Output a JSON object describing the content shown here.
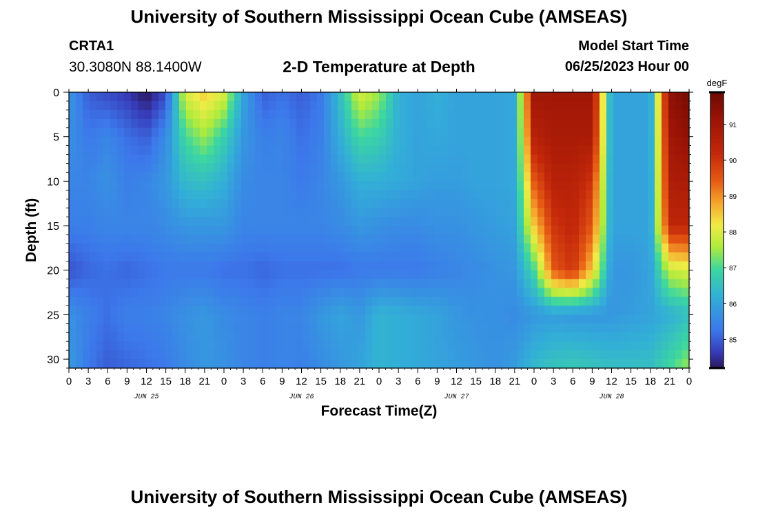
{
  "header": {
    "title_top": "University of Southern Mississippi Ocean Cube (AMSEAS)",
    "title_bottom": "University of Southern Mississippi Ocean Cube (AMSEAS)",
    "station": "CRTA1",
    "coords": "30.3080N  88.1400W",
    "subtitle": "2-D Temperature at Depth",
    "start_label": "Model Start Time",
    "start_value": "06/25/2023 Hour 00"
  },
  "chart_data": {
    "type": "heatmap",
    "title": "2-D Temperature at Depth",
    "xlabel": "Forecast Time(Z)",
    "ylabel": "Depth (ft)",
    "units": "degF",
    "xlim": [
      0,
      96
    ],
    "ylim": [
      0,
      31
    ],
    "y_inverted": true,
    "x_ticks": [
      0,
      3,
      6,
      9,
      12,
      15,
      18,
      21,
      24,
      27,
      30,
      33,
      36,
      39,
      42,
      45,
      48,
      51,
      54,
      57,
      60,
      63,
      66,
      69,
      72,
      75,
      78,
      81,
      84,
      87,
      90,
      93,
      96
    ],
    "x_tick_labels": [
      "0",
      "3",
      "6",
      "9",
      "12",
      "15",
      "18",
      "21",
      "0",
      "3",
      "6",
      "9",
      "12",
      "15",
      "18",
      "21",
      "0",
      "3",
      "6",
      "9",
      "12",
      "15",
      "18",
      "21",
      "0",
      "3",
      "6",
      "9",
      "12",
      "15",
      "18",
      "21",
      "0"
    ],
    "date_labels": [
      {
        "x": 12,
        "label": "JUN 25"
      },
      {
        "x": 36,
        "label": "JUN 26"
      },
      {
        "x": 60,
        "label": "JUN 27"
      },
      {
        "x": 84,
        "label": "JUN 28"
      }
    ],
    "y_ticks": [
      0,
      5,
      10,
      15,
      20,
      25,
      30
    ],
    "y_tick_labels": [
      "0",
      "5",
      "10",
      "15",
      "20",
      "25",
      "30"
    ],
    "colorbar": {
      "min": 84.2,
      "max": 91.9,
      "ticks": [
        85,
        86,
        87,
        88,
        89,
        90,
        91
      ],
      "tick_labels": [
        "85",
        "86",
        "87",
        "88",
        "89",
        "90",
        "91"
      ],
      "label": "degF"
    },
    "x": [
      0,
      3,
      6,
      9,
      12,
      15,
      18,
      21,
      24,
      27,
      30,
      33,
      36,
      39,
      42,
      45,
      48,
      51,
      54,
      57,
      60,
      63,
      66,
      69,
      72,
      75,
      78,
      81,
      84,
      87,
      90,
      93,
      96
    ],
    "y": [
      0,
      5,
      10,
      15,
      20,
      25,
      31
    ],
    "z": [
      [
        85.8,
        85.0,
        84.8,
        84.6,
        84.2,
        84.8,
        88.0,
        88.5,
        88.0,
        86.0,
        85.0,
        85.2,
        85.0,
        85.3,
        86.5,
        88.0,
        87.5,
        86.2,
        86.0,
        86.2,
        86.0,
        86.0,
        86.0,
        86.1,
        91.0,
        91.0,
        91.0,
        91.0,
        86.0,
        86.0,
        86.0,
        91.3,
        91.8
      ],
      [
        85.7,
        85.3,
        85.5,
        85.2,
        85.0,
        85.6,
        87.0,
        87.5,
        86.8,
        85.8,
        85.4,
        85.5,
        85.2,
        85.4,
        86.2,
        87.0,
        86.8,
        86.2,
        86.0,
        86.1,
        86.0,
        86.0,
        86.0,
        86.1,
        90.5,
        90.8,
        90.8,
        90.8,
        86.0,
        86.0,
        86.0,
        91.0,
        91.3
      ],
      [
        85.5,
        85.5,
        85.7,
        85.4,
        85.5,
        85.8,
        86.4,
        86.5,
        86.2,
        85.6,
        85.5,
        85.5,
        85.3,
        85.5,
        85.8,
        86.2,
        86.2,
        86.1,
        86.0,
        85.9,
        85.9,
        86.0,
        86.0,
        86.1,
        89.5,
        90.5,
        90.5,
        90.0,
        86.0,
        86.0,
        86.0,
        90.7,
        90.8
      ],
      [
        85.4,
        85.4,
        85.5,
        85.5,
        85.5,
        85.6,
        85.8,
        85.8,
        85.8,
        85.5,
        85.5,
        85.5,
        85.5,
        85.5,
        85.6,
        85.8,
        85.7,
        85.6,
        85.6,
        85.7,
        85.7,
        85.8,
        85.9,
        86.0,
        88.5,
        90.0,
        90.3,
        89.5,
        86.0,
        86.0,
        86.0,
        90.3,
        90.3
      ],
      [
        84.9,
        85.1,
        85.2,
        85.1,
        85.2,
        85.3,
        85.3,
        85.3,
        85.2,
        85.2,
        85.1,
        85.2,
        85.2,
        85.2,
        85.2,
        85.3,
        85.3,
        85.3,
        85.3,
        85.4,
        85.5,
        85.6,
        85.7,
        85.8,
        87.0,
        89.5,
        90.0,
        88.5,
        85.8,
        85.8,
        86.0,
        87.8,
        88.0
      ],
      [
        85.7,
        85.4,
        85.2,
        85.4,
        85.4,
        85.5,
        85.7,
        85.8,
        85.6,
        85.5,
        85.4,
        85.5,
        85.5,
        85.8,
        86.0,
        85.8,
        86.3,
        86.2,
        86.1,
        86.0,
        85.8,
        85.7,
        85.7,
        85.6,
        85.8,
        85.9,
        85.8,
        85.8,
        85.8,
        85.9,
        86.0,
        86.2,
        86.5
      ],
      [
        85.9,
        85.3,
        85.0,
        85.1,
        85.2,
        85.3,
        85.6,
        85.8,
        85.7,
        85.5,
        85.4,
        85.5,
        85.4,
        85.6,
        85.8,
        86.0,
        86.3,
        86.2,
        86.1,
        86.0,
        85.9,
        85.8,
        85.7,
        85.9,
        86.4,
        86.6,
        86.7,
        86.6,
        86.5,
        86.5,
        86.5,
        87.0,
        87.5
      ]
    ]
  }
}
